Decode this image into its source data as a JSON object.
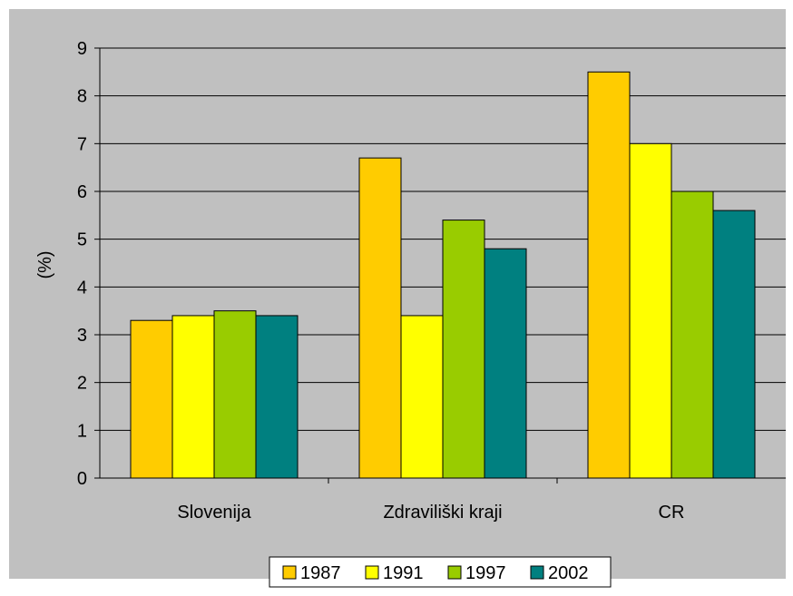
{
  "chart_data": {
    "type": "bar",
    "title": "",
    "xlabel": "",
    "ylabel": "(%)",
    "ylim": [
      0,
      9
    ],
    "yticks": [
      "0",
      "1",
      "2",
      "3",
      "4",
      "5",
      "6",
      "7",
      "8",
      "9"
    ],
    "categories": [
      "Slovenija",
      "Zdraviliški kraji",
      "CR"
    ],
    "series": [
      {
        "name": "1987",
        "color": "#FFCC00",
        "values": [
          3.3,
          6.7,
          8.5
        ]
      },
      {
        "name": "1991",
        "color": "#FFFF00",
        "values": [
          3.4,
          3.4,
          7.0
        ]
      },
      {
        "name": "1997",
        "color": "#99CC00",
        "values": [
          3.5,
          5.4,
          6.0
        ]
      },
      {
        "name": "2002",
        "color": "#008080",
        "values": [
          3.4,
          4.8,
          5.6
        ]
      }
    ],
    "grid": true,
    "legend_position": "bottom",
    "plot_background": "#C0C0C0"
  }
}
